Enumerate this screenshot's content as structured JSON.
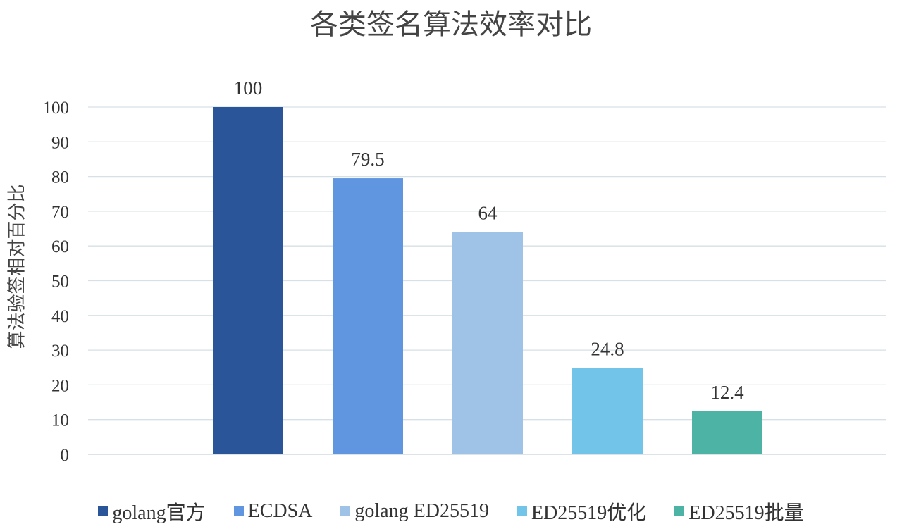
{
  "chart_data": {
    "type": "bar",
    "title": "各类签名算法效率对比",
    "ylabel": "算法验签相对百分比",
    "xlabel": "",
    "ylim": [
      0,
      100
    ],
    "yticks": [
      0,
      10,
      20,
      30,
      40,
      50,
      60,
      70,
      80,
      90,
      100
    ],
    "grid": true,
    "legend": "bottom",
    "categories": [
      "golang官方",
      "ECDSA",
      "golang ED25519",
      "ED25519优化",
      "ED25519批量"
    ],
    "values": [
      100,
      79.5,
      64,
      24.8,
      12.4
    ],
    "data_labels": [
      "100",
      "79.5",
      "64",
      "24.8",
      "12.4"
    ],
    "colors": [
      "#2a5599",
      "#5f96df",
      "#9ec3e7",
      "#72c4e9",
      "#4db3a4"
    ]
  }
}
